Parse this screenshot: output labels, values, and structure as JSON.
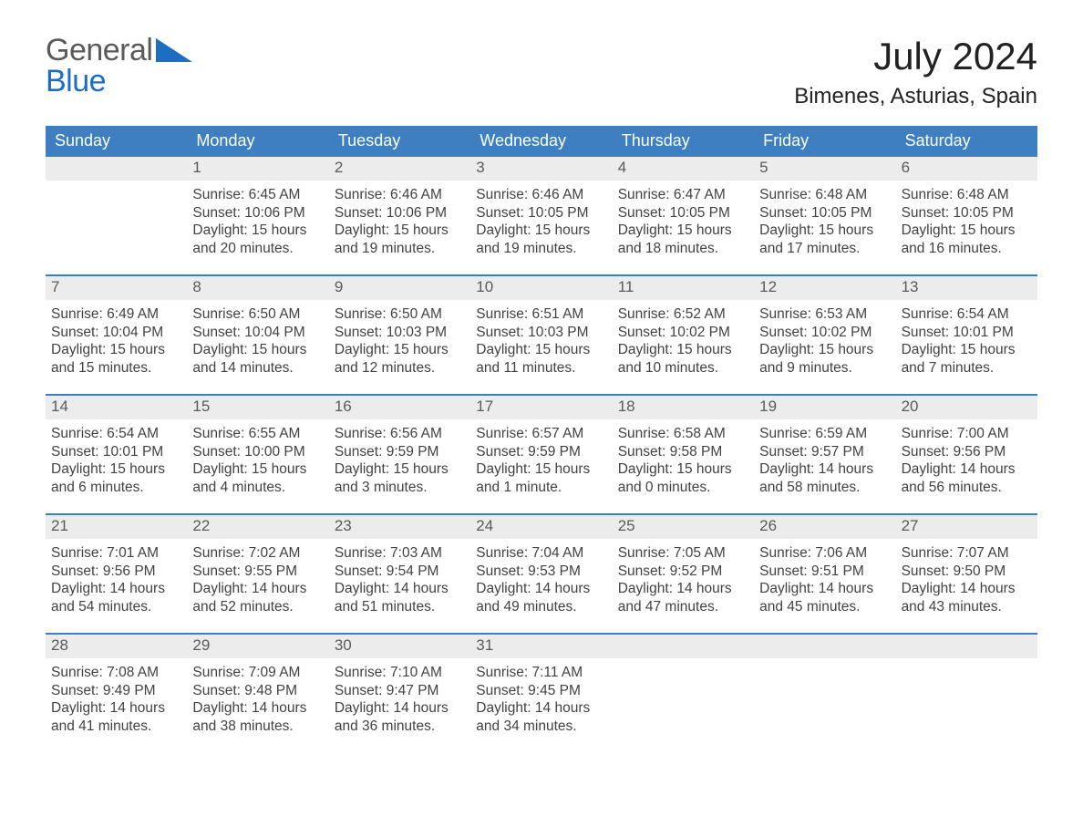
{
  "brand": {
    "word1": "General",
    "word2": "Blue"
  },
  "colors": {
    "header_blue": "#3d7fc1",
    "rule_blue": "#3d7fc1",
    "daynum_bg": "#ececec",
    "text": "#323232",
    "logo_gray": "#5a5a5a",
    "logo_blue": "#1b6ec2",
    "background": "#ffffff"
  },
  "title": "July 2024",
  "location": "Bimenes, Asturias, Spain",
  "day_names": [
    "Sunday",
    "Monday",
    "Tuesday",
    "Wednesday",
    "Thursday",
    "Friday",
    "Saturday"
  ],
  "label_sunrise": "Sunrise: ",
  "label_sunset": "Sunset: ",
  "label_daylight_prefix": "Daylight: ",
  "weeks": [
    [
      null,
      {
        "n": "1",
        "sunrise": "6:45 AM",
        "sunset": "10:06 PM",
        "daylight": "15 hours and 20 minutes."
      },
      {
        "n": "2",
        "sunrise": "6:46 AM",
        "sunset": "10:06 PM",
        "daylight": "15 hours and 19 minutes."
      },
      {
        "n": "3",
        "sunrise": "6:46 AM",
        "sunset": "10:05 PM",
        "daylight": "15 hours and 19 minutes."
      },
      {
        "n": "4",
        "sunrise": "6:47 AM",
        "sunset": "10:05 PM",
        "daylight": "15 hours and 18 minutes."
      },
      {
        "n": "5",
        "sunrise": "6:48 AM",
        "sunset": "10:05 PM",
        "daylight": "15 hours and 17 minutes."
      },
      {
        "n": "6",
        "sunrise": "6:48 AM",
        "sunset": "10:05 PM",
        "daylight": "15 hours and 16 minutes."
      }
    ],
    [
      {
        "n": "7",
        "sunrise": "6:49 AM",
        "sunset": "10:04 PM",
        "daylight": "15 hours and 15 minutes."
      },
      {
        "n": "8",
        "sunrise": "6:50 AM",
        "sunset": "10:04 PM",
        "daylight": "15 hours and 14 minutes."
      },
      {
        "n": "9",
        "sunrise": "6:50 AM",
        "sunset": "10:03 PM",
        "daylight": "15 hours and 12 minutes."
      },
      {
        "n": "10",
        "sunrise": "6:51 AM",
        "sunset": "10:03 PM",
        "daylight": "15 hours and 11 minutes."
      },
      {
        "n": "11",
        "sunrise": "6:52 AM",
        "sunset": "10:02 PM",
        "daylight": "15 hours and 10 minutes."
      },
      {
        "n": "12",
        "sunrise": "6:53 AM",
        "sunset": "10:02 PM",
        "daylight": "15 hours and 9 minutes."
      },
      {
        "n": "13",
        "sunrise": "6:54 AM",
        "sunset": "10:01 PM",
        "daylight": "15 hours and 7 minutes."
      }
    ],
    [
      {
        "n": "14",
        "sunrise": "6:54 AM",
        "sunset": "10:01 PM",
        "daylight": "15 hours and 6 minutes."
      },
      {
        "n": "15",
        "sunrise": "6:55 AM",
        "sunset": "10:00 PM",
        "daylight": "15 hours and 4 minutes."
      },
      {
        "n": "16",
        "sunrise": "6:56 AM",
        "sunset": "9:59 PM",
        "daylight": "15 hours and 3 minutes."
      },
      {
        "n": "17",
        "sunrise": "6:57 AM",
        "sunset": "9:59 PM",
        "daylight": "15 hours and 1 minute."
      },
      {
        "n": "18",
        "sunrise": "6:58 AM",
        "sunset": "9:58 PM",
        "daylight": "15 hours and 0 minutes."
      },
      {
        "n": "19",
        "sunrise": "6:59 AM",
        "sunset": "9:57 PM",
        "daylight": "14 hours and 58 minutes."
      },
      {
        "n": "20",
        "sunrise": "7:00 AM",
        "sunset": "9:56 PM",
        "daylight": "14 hours and 56 minutes."
      }
    ],
    [
      {
        "n": "21",
        "sunrise": "7:01 AM",
        "sunset": "9:56 PM",
        "daylight": "14 hours and 54 minutes."
      },
      {
        "n": "22",
        "sunrise": "7:02 AM",
        "sunset": "9:55 PM",
        "daylight": "14 hours and 52 minutes."
      },
      {
        "n": "23",
        "sunrise": "7:03 AM",
        "sunset": "9:54 PM",
        "daylight": "14 hours and 51 minutes."
      },
      {
        "n": "24",
        "sunrise": "7:04 AM",
        "sunset": "9:53 PM",
        "daylight": "14 hours and 49 minutes."
      },
      {
        "n": "25",
        "sunrise": "7:05 AM",
        "sunset": "9:52 PM",
        "daylight": "14 hours and 47 minutes."
      },
      {
        "n": "26",
        "sunrise": "7:06 AM",
        "sunset": "9:51 PM",
        "daylight": "14 hours and 45 minutes."
      },
      {
        "n": "27",
        "sunrise": "7:07 AM",
        "sunset": "9:50 PM",
        "daylight": "14 hours and 43 minutes."
      }
    ],
    [
      {
        "n": "28",
        "sunrise": "7:08 AM",
        "sunset": "9:49 PM",
        "daylight": "14 hours and 41 minutes."
      },
      {
        "n": "29",
        "sunrise": "7:09 AM",
        "sunset": "9:48 PM",
        "daylight": "14 hours and 38 minutes."
      },
      {
        "n": "30",
        "sunrise": "7:10 AM",
        "sunset": "9:47 PM",
        "daylight": "14 hours and 36 minutes."
      },
      {
        "n": "31",
        "sunrise": "7:11 AM",
        "sunset": "9:45 PM",
        "daylight": "14 hours and 34 minutes."
      },
      null,
      null,
      null
    ]
  ]
}
